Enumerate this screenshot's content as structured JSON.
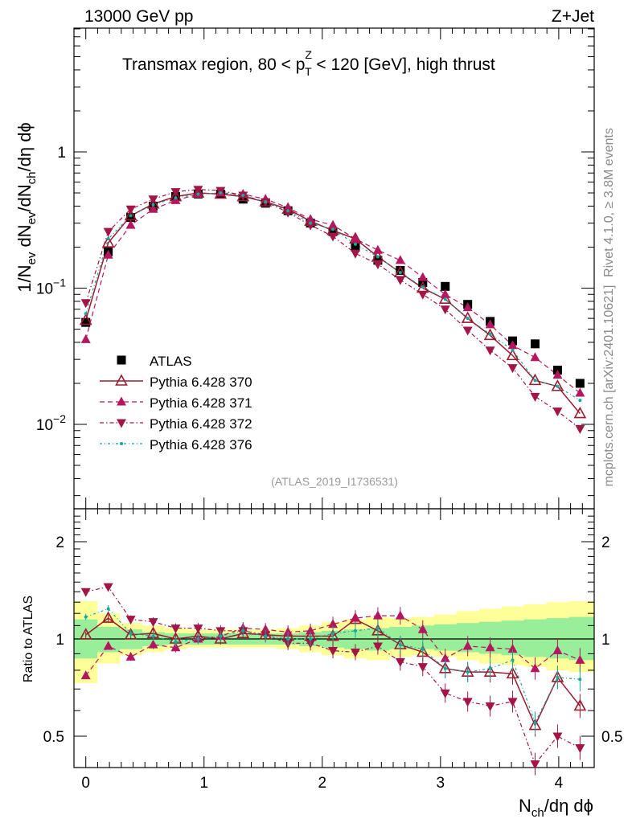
{
  "header": {
    "energy_label": "13000 GeV pp",
    "process_label": "Z+Jet",
    "plot_title_main": "Transmax region, 80 < p",
    "plot_title_sup": "Z",
    "plot_title_sub": "T",
    "plot_title_rest": " < 120 [GeV], high thrust",
    "analysis_id": "(ATLAS_2019_I1736531)",
    "side_text_top": "Rivet 4.1.0, ≥ 3.8M events",
    "side_text_bottom": "mcplots.cern.ch [arXiv:2401.10621]"
  },
  "axes": {
    "x_label": "N",
    "x_label_sub": "ch",
    "x_label_rest": "/dη dϕ",
    "y_label_main": "1/N",
    "y_label_sub1": "ev",
    "y_label_mid": " dN",
    "y_label_sub2": "ev",
    "y_label_rest": "/dN",
    "y_label_sub3": "ch",
    "y_label_end": "/dη dϕ",
    "ratio_y_label": "Ratio to ATLAS",
    "x_ticks": [
      "0",
      "1",
      "2",
      "3",
      "4"
    ],
    "y_ticks_main": [
      {
        "base": "1",
        "exp": ""
      },
      {
        "base": "10",
        "exp": "−1"
      },
      {
        "base": "10",
        "exp": "−2"
      }
    ],
    "y_ticks_ratio": [
      "0.5",
      "1",
      "2"
    ]
  },
  "legend": [
    {
      "label": "ATLAS",
      "color": "#000000",
      "marker": "square"
    },
    {
      "label": "Pythia 6.428 370",
      "color": "#9b1b30",
      "marker": "open-triangle-up"
    },
    {
      "label": "Pythia 6.428 371",
      "color": "#b5175f",
      "marker": "triangle-up"
    },
    {
      "label": "Pythia 6.428 372",
      "color": "#a31447",
      "marker": "triangle-down"
    },
    {
      "label": "Pythia 6.428 376",
      "color": "#16a89a",
      "marker": "dot"
    }
  ],
  "chart_data": {
    "type": "line",
    "title": "Transmax region, 80 < pT^Z < 120 [GeV], high thrust",
    "xlabel": "Nch/dη dϕ",
    "ylabel": "1/Nev dNev/dNch/dη dϕ",
    "xlim": [
      -0.1,
      4.3
    ],
    "ylim": [
      0.002,
      8
    ],
    "yscale": "log",
    "ratio_ylim": [
      0.4,
      2.4
    ],
    "x": [
      0.0,
      0.19,
      0.38,
      0.57,
      0.76,
      0.95,
      1.14,
      1.33,
      1.52,
      1.71,
      1.9,
      2.09,
      2.28,
      2.47,
      2.66,
      2.85,
      3.04,
      3.23,
      3.42,
      3.61,
      3.8,
      3.99,
      4.18
    ],
    "series": [
      {
        "name": "ATLAS",
        "values": [
          0.056,
          0.185,
          0.33,
          0.4,
          0.47,
          0.49,
          0.49,
          0.45,
          0.42,
          0.37,
          0.3,
          0.26,
          0.2,
          0.16,
          0.135,
          0.11,
          0.103,
          0.076,
          0.057,
          0.041,
          0.039,
          0.025,
          0.02
        ]
      },
      {
        "name": "Pythia 6.428 370",
        "values": [
          0.058,
          0.215,
          0.34,
          0.415,
          0.47,
          0.5,
          0.49,
          0.47,
          0.43,
          0.38,
          0.31,
          0.265,
          0.23,
          0.17,
          0.13,
          0.1,
          0.083,
          0.06,
          0.045,
          0.032,
          0.021,
          0.019,
          0.012
        ]
      },
      {
        "name": "Pythia 6.428 371",
        "values": [
          0.042,
          0.175,
          0.29,
          0.38,
          0.44,
          0.49,
          0.5,
          0.49,
          0.45,
          0.39,
          0.32,
          0.29,
          0.23,
          0.19,
          0.16,
          0.12,
          0.09,
          0.072,
          0.054,
          0.038,
          0.031,
          0.023,
          0.017
        ]
      },
      {
        "name": "Pythia 6.428 372",
        "values": [
          0.078,
          0.26,
          0.38,
          0.45,
          0.51,
          0.53,
          0.52,
          0.48,
          0.43,
          0.36,
          0.29,
          0.24,
          0.18,
          0.15,
          0.115,
          0.09,
          0.07,
          0.049,
          0.035,
          0.026,
          0.016,
          0.0125,
          0.0093
        ]
      },
      {
        "name": "Pythia 6.428 376",
        "values": [
          0.065,
          0.23,
          0.34,
          0.41,
          0.46,
          0.49,
          0.5,
          0.48,
          0.43,
          0.37,
          0.3,
          0.27,
          0.21,
          0.17,
          0.13,
          0.102,
          0.083,
          0.06,
          0.046,
          0.035,
          0.021,
          0.019,
          0.015
        ]
      }
    ],
    "ratio_series": [
      {
        "name": "Pythia 6.428 370",
        "values": [
          1.03,
          1.16,
          1.03,
          1.04,
          1.0,
          1.02,
          1.0,
          1.04,
          1.03,
          1.02,
          1.02,
          1.02,
          1.15,
          1.06,
          0.96,
          0.91,
          0.81,
          0.79,
          0.79,
          0.78,
          0.54,
          0.76,
          0.62
        ]
      },
      {
        "name": "Pythia 6.428 371",
        "values": [
          0.77,
          0.95,
          0.88,
          0.96,
          0.94,
          1.0,
          1.02,
          1.08,
          1.07,
          1.05,
          1.06,
          1.11,
          1.16,
          1.18,
          1.18,
          1.07,
          0.87,
          0.95,
          0.94,
          0.93,
          0.81,
          0.92,
          0.86
        ]
      },
      {
        "name": "Pythia 6.428 372",
        "values": [
          1.4,
          1.45,
          1.15,
          1.13,
          1.08,
          1.08,
          1.06,
          1.06,
          1.03,
          0.97,
          0.97,
          0.92,
          0.91,
          0.95,
          0.85,
          0.82,
          0.68,
          0.64,
          0.62,
          0.64,
          0.41,
          0.5,
          0.46
        ]
      },
      {
        "name": "Pythia 6.428 376",
        "values": [
          1.17,
          1.24,
          1.04,
          1.02,
          0.98,
          1.0,
          1.02,
          1.06,
          1.02,
          1.0,
          1.0,
          1.04,
          1.06,
          1.08,
          0.96,
          0.93,
          0.81,
          0.79,
          0.81,
          0.86,
          0.55,
          0.76,
          0.75
        ]
      }
    ],
    "band_x_edges": [
      -0.1,
      0.095,
      0.285,
      0.475,
      0.665,
      0.855,
      1.045,
      1.235,
      1.425,
      1.615,
      1.805,
      1.995,
      2.185,
      2.375,
      2.565,
      2.755,
      2.945,
      3.135,
      3.325,
      3.515,
      3.705,
      3.895,
      4.085,
      4.3
    ],
    "band_green": [
      [
        0.87,
        1.15
      ],
      [
        0.91,
        1.09
      ],
      [
        0.93,
        1.07
      ],
      [
        0.95,
        1.05
      ],
      [
        0.96,
        1.04
      ],
      [
        0.96,
        1.04
      ],
      [
        0.96,
        1.04
      ],
      [
        0.96,
        1.04
      ],
      [
        0.96,
        1.04
      ],
      [
        0.96,
        1.04
      ],
      [
        0.95,
        1.05
      ],
      [
        0.94,
        1.06
      ],
      [
        0.93,
        1.07
      ],
      [
        0.92,
        1.08
      ],
      [
        0.93,
        1.09
      ],
      [
        0.93,
        1.1
      ],
      [
        0.92,
        1.11
      ],
      [
        0.91,
        1.12
      ],
      [
        0.9,
        1.13
      ],
      [
        0.89,
        1.14
      ],
      [
        0.88,
        1.15
      ],
      [
        0.87,
        1.16
      ],
      [
        0.86,
        1.17
      ]
    ],
    "band_yellow": [
      [
        0.73,
        1.31
      ],
      [
        0.84,
        1.2
      ],
      [
        0.89,
        1.12
      ],
      [
        0.91,
        1.1
      ],
      [
        0.93,
        1.08
      ],
      [
        0.94,
        1.07
      ],
      [
        0.94,
        1.07
      ],
      [
        0.94,
        1.07
      ],
      [
        0.94,
        1.07
      ],
      [
        0.93,
        1.08
      ],
      [
        0.91,
        1.1
      ],
      [
        0.89,
        1.13
      ],
      [
        0.87,
        1.15
      ],
      [
        0.86,
        1.17
      ],
      [
        0.88,
        1.16
      ],
      [
        0.89,
        1.17
      ],
      [
        0.88,
        1.19
      ],
      [
        0.86,
        1.22
      ],
      [
        0.84,
        1.24
      ],
      [
        0.83,
        1.26
      ],
      [
        0.82,
        1.28
      ],
      [
        0.8,
        1.3
      ],
      [
        0.79,
        1.31
      ]
    ]
  }
}
